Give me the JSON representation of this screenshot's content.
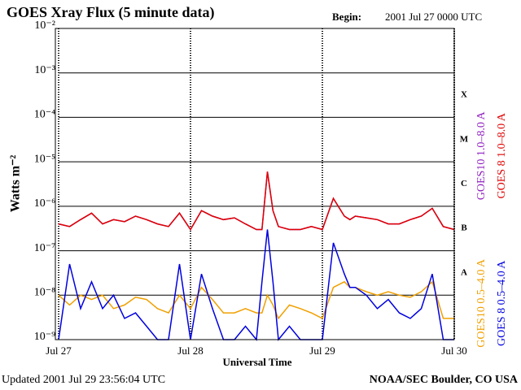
{
  "chart_data": {
    "type": "line",
    "title": "GOES Xray Flux (5 minute data)",
    "begin_label": "Begin:",
    "begin": "2001 Jul 27 0000 UTC",
    "ylabel": "Watts m⁻²",
    "xlabel": "Universal Time",
    "footer_left": "Updated 2001 Jul 29 23:56:04 UTC",
    "footer_right": "NOAA/SEC Boulder, CO USA",
    "class_labels": [
      "A",
      "B",
      "C",
      "M",
      "X"
    ],
    "log_y": true,
    "grid": true,
    "xlim": [
      "2001-07-27 00:00",
      "2001-07-30 00:00"
    ],
    "xticks": [
      {
        "value": "2001-07-27 00:00",
        "label": "Jul 27"
      },
      {
        "value": "2001-07-28 00:00",
        "label": "Jul 28"
      },
      {
        "value": "2001-07-29 00:00",
        "label": "Jul 29"
      },
      {
        "value": "2001-07-30 00:00",
        "label": "Jul 30"
      }
    ],
    "ylim": [
      1e-09,
      0.01
    ],
    "yticks": [
      {
        "value": 1e-09,
        "label": "10⁻⁹"
      },
      {
        "value": 1e-08,
        "label": "10⁻⁸"
      },
      {
        "value": 1e-07,
        "label": "10⁻⁷"
      },
      {
        "value": 1e-06,
        "label": "10⁻⁶"
      },
      {
        "value": 1e-05,
        "label": "10⁻⁵"
      },
      {
        "value": 0.0001,
        "label": "10⁻⁴"
      },
      {
        "value": 0.001,
        "label": "10⁻³"
      },
      {
        "value": 0.01,
        "label": "10⁻²"
      }
    ],
    "x": [
      "2001-07-27 00:00",
      "2001-07-27 02:00",
      "2001-07-27 04:00",
      "2001-07-27 06:00",
      "2001-07-27 08:00",
      "2001-07-27 10:00",
      "2001-07-27 12:00",
      "2001-07-27 14:00",
      "2001-07-27 16:00",
      "2001-07-27 18:00",
      "2001-07-27 20:00",
      "2001-07-27 22:00",
      "2001-07-28 00:00",
      "2001-07-28 02:00",
      "2001-07-28 04:00",
      "2001-07-28 06:00",
      "2001-07-28 08:00",
      "2001-07-28 10:00",
      "2001-07-28 12:00",
      "2001-07-28 13:00",
      "2001-07-28 14:00",
      "2001-07-28 15:00",
      "2001-07-28 16:00",
      "2001-07-28 18:00",
      "2001-07-28 20:00",
      "2001-07-28 22:00",
      "2001-07-29 00:00",
      "2001-07-29 02:00",
      "2001-07-29 04:00",
      "2001-07-29 05:00",
      "2001-07-29 06:00",
      "2001-07-29 08:00",
      "2001-07-29 10:00",
      "2001-07-29 12:00",
      "2001-07-29 14:00",
      "2001-07-29 16:00",
      "2001-07-29 18:00",
      "2001-07-29 20:00",
      "2001-07-29 22:00",
      "2001-07-30 00:00"
    ],
    "series": [
      {
        "name": "GOES10 1.0–8.0 A",
        "color": "#9020c0",
        "legend_group": "long",
        "values": [
          4e-07,
          3.5e-07,
          5e-07,
          7e-07,
          4e-07,
          5e-07,
          4.5e-07,
          6e-07,
          5e-07,
          4e-07,
          3.5e-07,
          7e-07,
          3e-07,
          8e-07,
          6e-07,
          5e-07,
          5.5e-07,
          4e-07,
          3e-07,
          3e-07,
          6e-06,
          8e-07,
          3.5e-07,
          3e-07,
          3e-07,
          3.5e-07,
          3e-07,
          1.5e-06,
          6e-07,
          5e-07,
          6e-07,
          5.5e-07,
          5e-07,
          4e-07,
          4e-07,
          5e-07,
          6e-07,
          9e-07,
          3.5e-07,
          3e-07
        ]
      },
      {
        "name": "GOES 8 1.0–8.0 A",
        "color": "#e00000",
        "legend_group": "long",
        "values": [
          4e-07,
          3.5e-07,
          5e-07,
          7e-07,
          4e-07,
          5e-07,
          4.5e-07,
          6e-07,
          5e-07,
          4e-07,
          3.5e-07,
          7e-07,
          3e-07,
          8e-07,
          6e-07,
          5e-07,
          5.5e-07,
          4e-07,
          3e-07,
          3e-07,
          6e-06,
          8e-07,
          3.5e-07,
          3e-07,
          3e-07,
          3.5e-07,
          3e-07,
          1.5e-06,
          6e-07,
          5e-07,
          6e-07,
          5.5e-07,
          5e-07,
          4e-07,
          4e-07,
          5e-07,
          6e-07,
          9e-07,
          3.5e-07,
          3e-07
        ]
      },
      {
        "name": "GOES10 0.5–4.0 A",
        "color": "#f0a000",
        "legend_group": "short",
        "values": [
          1e-08,
          6e-09,
          1e-08,
          8e-09,
          1e-08,
          5e-09,
          6e-09,
          9e-09,
          8e-09,
          5e-09,
          4e-09,
          1e-08,
          5e-09,
          1.5e-08,
          8e-09,
          4e-09,
          4e-09,
          5e-09,
          4e-09,
          4e-09,
          1e-08,
          6e-09,
          3e-09,
          6e-09,
          5e-09,
          4e-09,
          3e-09,
          1.5e-08,
          2e-08,
          1.5e-08,
          1.5e-08,
          1.2e-08,
          1e-08,
          1.2e-08,
          1e-08,
          9e-09,
          1.2e-08,
          2e-08,
          3e-09,
          3e-09
        ]
      },
      {
        "name": "GOES 8 0.5–4.0 A",
        "color": "#0000e0",
        "legend_group": "short",
        "values": [
          1e-09,
          5e-08,
          5e-09,
          2e-08,
          5e-09,
          1e-08,
          3e-09,
          4e-09,
          2e-09,
          1e-09,
          1e-09,
          5e-08,
          1e-09,
          3e-08,
          5e-09,
          1e-09,
          1e-09,
          2e-09,
          1e-09,
          2e-08,
          3e-07,
          2e-08,
          1e-09,
          2e-09,
          1e-09,
          1e-09,
          1e-09,
          1.5e-07,
          3e-08,
          1.5e-08,
          1.5e-08,
          1e-08,
          5e-09,
          8e-09,
          4e-09,
          3e-09,
          5e-09,
          3e-08,
          1e-09,
          1e-09
        ]
      }
    ]
  }
}
